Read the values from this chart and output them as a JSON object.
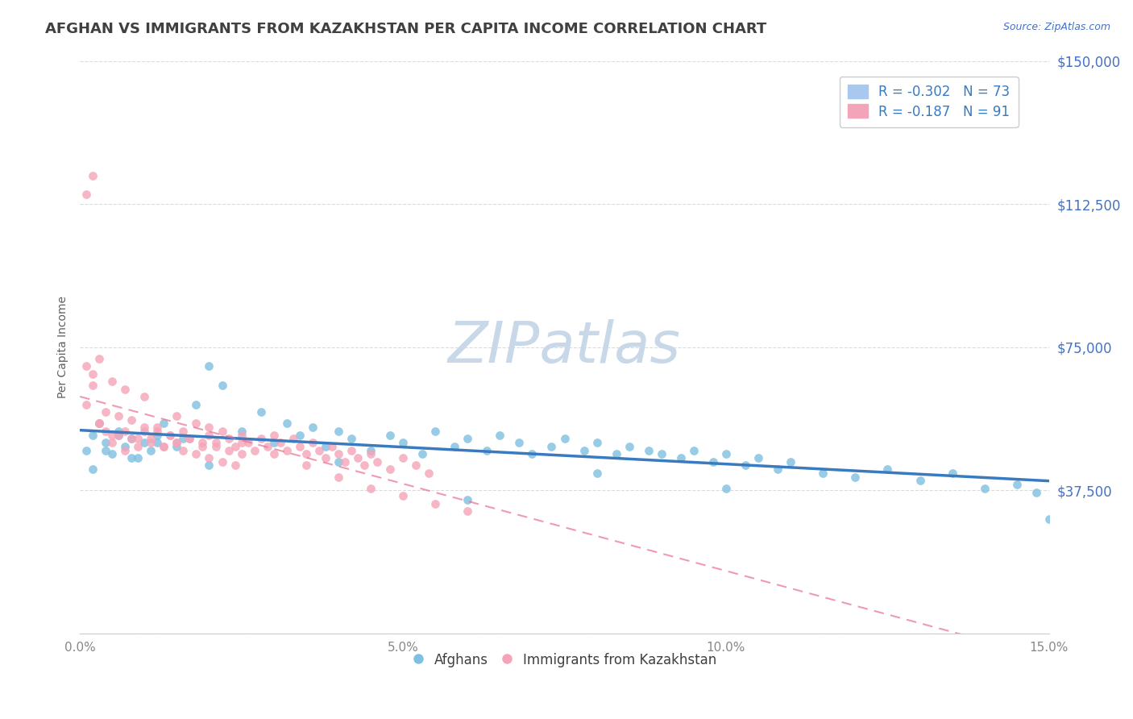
{
  "title": "AFGHAN VS IMMIGRANTS FROM KAZAKHSTAN PER CAPITA INCOME CORRELATION CHART",
  "source_text": "Source: ZipAtlas.com",
  "xlabel": "",
  "ylabel": "Per Capita Income",
  "xlim": [
    0.0,
    0.15
  ],
  "ylim": [
    0,
    150000
  ],
  "yticks": [
    0,
    37500,
    75000,
    112500,
    150000
  ],
  "ytick_labels": [
    "",
    "$37,500",
    "$75,000",
    "$112,500",
    "$150,000"
  ],
  "xtick_labels": [
    "0.0%",
    "5.0%",
    "10.0%",
    "15.0%"
  ],
  "xticks": [
    0.0,
    0.05,
    0.1,
    0.15
  ],
  "legend_entries": [
    {
      "label": "R = -0.302   N = 73",
      "color": "#a8c8f0"
    },
    {
      "label": "R = -0.187   N = 91",
      "color": "#f0a8b8"
    }
  ],
  "legend_bottom_labels": [
    "Afghans",
    "Immigrants from Kazakhstan"
  ],
  "series": [
    {
      "name": "Afghans",
      "color": "#6baed6",
      "marker_color": "#7fbfdf",
      "trend_color": "#3a7abf",
      "trend_style": "solid",
      "R": -0.302,
      "N": 73,
      "x": [
        0.001,
        0.002,
        0.003,
        0.004,
        0.005,
        0.006,
        0.007,
        0.008,
        0.009,
        0.01,
        0.011,
        0.012,
        0.013,
        0.015,
        0.016,
        0.018,
        0.02,
        0.022,
        0.025,
        0.028,
        0.03,
        0.032,
        0.034,
        0.036,
        0.038,
        0.04,
        0.042,
        0.045,
        0.048,
        0.05,
        0.053,
        0.055,
        0.058,
        0.06,
        0.063,
        0.065,
        0.068,
        0.07,
        0.073,
        0.075,
        0.078,
        0.08,
        0.083,
        0.085,
        0.088,
        0.09,
        0.093,
        0.095,
        0.098,
        0.1,
        0.103,
        0.105,
        0.108,
        0.11,
        0.115,
        0.12,
        0.125,
        0.13,
        0.135,
        0.14,
        0.145,
        0.148,
        0.15,
        0.002,
        0.004,
        0.006,
        0.008,
        0.012,
        0.02,
        0.04,
        0.06,
        0.08,
        0.1
      ],
      "y": [
        48000,
        52000,
        55000,
        50000,
        47000,
        53000,
        49000,
        51000,
        46000,
        50000,
        48000,
        52000,
        55000,
        49000,
        51000,
        60000,
        70000,
        65000,
        53000,
        58000,
        50000,
        55000,
        52000,
        54000,
        49000,
        53000,
        51000,
        48000,
        52000,
        50000,
        47000,
        53000,
        49000,
        51000,
        48000,
        52000,
        50000,
        47000,
        49000,
        51000,
        48000,
        50000,
        47000,
        49000,
        48000,
        47000,
        46000,
        48000,
        45000,
        47000,
        44000,
        46000,
        43000,
        45000,
        42000,
        41000,
        43000,
        40000,
        42000,
        38000,
        39000,
        37000,
        30000,
        43000,
        48000,
        52000,
        46000,
        50000,
        44000,
        45000,
        35000,
        42000,
        38000
      ]
    },
    {
      "name": "Immigrants from Kazakhstan",
      "color": "#f4a4b8",
      "marker_color": "#f4a4b8",
      "trend_color": "#e87090",
      "trend_style": "dashed",
      "R": -0.187,
      "N": 91,
      "x": [
        0.001,
        0.002,
        0.003,
        0.004,
        0.005,
        0.006,
        0.007,
        0.008,
        0.009,
        0.01,
        0.011,
        0.012,
        0.013,
        0.014,
        0.015,
        0.016,
        0.017,
        0.018,
        0.019,
        0.02,
        0.021,
        0.022,
        0.023,
        0.024,
        0.025,
        0.026,
        0.027,
        0.028,
        0.029,
        0.03,
        0.031,
        0.032,
        0.033,
        0.034,
        0.035,
        0.036,
        0.037,
        0.038,
        0.039,
        0.04,
        0.041,
        0.042,
        0.043,
        0.044,
        0.045,
        0.046,
        0.048,
        0.05,
        0.052,
        0.054,
        0.001,
        0.002,
        0.003,
        0.004,
        0.005,
        0.006,
        0.007,
        0.008,
        0.009,
        0.01,
        0.011,
        0.012,
        0.013,
        0.014,
        0.015,
        0.016,
        0.017,
        0.018,
        0.019,
        0.02,
        0.021,
        0.022,
        0.023,
        0.024,
        0.025,
        0.001,
        0.002,
        0.003,
        0.005,
        0.007,
        0.01,
        0.015,
        0.02,
        0.025,
        0.03,
        0.035,
        0.04,
        0.045,
        0.05,
        0.055,
        0.06
      ],
      "y": [
        115000,
        120000,
        55000,
        53000,
        50000,
        52000,
        48000,
        51000,
        49000,
        53000,
        51000,
        54000,
        49000,
        52000,
        50000,
        53000,
        51000,
        55000,
        49000,
        52000,
        50000,
        53000,
        51000,
        49000,
        52000,
        50000,
        48000,
        51000,
        49000,
        52000,
        50000,
        48000,
        51000,
        49000,
        47000,
        50000,
        48000,
        46000,
        49000,
        47000,
        45000,
        48000,
        46000,
        44000,
        47000,
        45000,
        43000,
        46000,
        44000,
        42000,
        60000,
        65000,
        55000,
        58000,
        52000,
        57000,
        53000,
        56000,
        51000,
        54000,
        50000,
        53000,
        49000,
        52000,
        50000,
        48000,
        51000,
        47000,
        50000,
        46000,
        49000,
        45000,
        48000,
        44000,
        47000,
        70000,
        68000,
        72000,
        66000,
        64000,
        62000,
        57000,
        54000,
        50000,
        47000,
        44000,
        41000,
        38000,
        36000,
        34000,
        32000
      ]
    }
  ],
  "watermark": "ZIPatlas",
  "watermark_color": "#c8d8e8",
  "background_color": "#ffffff",
  "grid_color": "#cccccc",
  "axis_label_color": "#4472c4",
  "title_color": "#404040",
  "title_fontsize": 13,
  "tick_color": "#4472c4",
  "ylabel_color": "#606060",
  "ylabel_fontsize": 10
}
